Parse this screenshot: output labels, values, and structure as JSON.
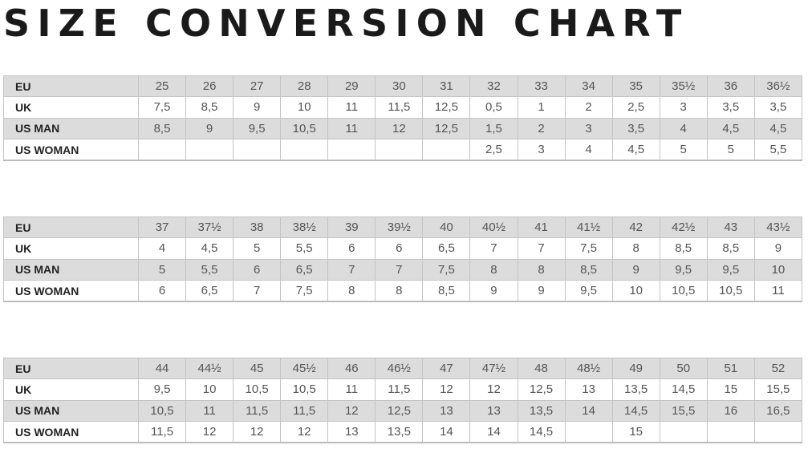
{
  "title": "SIZE CONVERSION CHART",
  "colors": {
    "header_row": "#dcdcdc",
    "border": "#c4c4c4"
  },
  "tables": [
    {
      "rows": [
        {
          "label": "EU",
          "values": [
            "25",
            "26",
            "27",
            "28",
            "29",
            "30",
            "31",
            "32",
            "33",
            "34",
            "35",
            "35½",
            "36",
            "36½"
          ]
        },
        {
          "label": "UK",
          "values": [
            "7,5",
            "8,5",
            "9",
            "10",
            "11",
            "11,5",
            "12,5",
            "0,5",
            "1",
            "2",
            "2,5",
            "3",
            "3,5",
            "3,5"
          ]
        },
        {
          "label": "US MAN",
          "values": [
            "8,5",
            "9",
            "9,5",
            "10,5",
            "11",
            "12",
            "12,5",
            "1,5",
            "2",
            "3",
            "3,5",
            "4",
            "4,5",
            "4,5"
          ]
        },
        {
          "label": "US WOMAN",
          "values": [
            "",
            "",
            "",
            "",
            "",
            "",
            "",
            "2,5",
            "3",
            "4",
            "4,5",
            "5",
            "5",
            "5,5"
          ]
        }
      ]
    },
    {
      "rows": [
        {
          "label": "EU",
          "values": [
            "37",
            "37½",
            "38",
            "38½",
            "39",
            "39½",
            "40",
            "40½",
            "41",
            "41½",
            "42",
            "42½",
            "43",
            "43½"
          ]
        },
        {
          "label": "UK",
          "values": [
            "4",
            "4,5",
            "5",
            "5,5",
            "6",
            "6",
            "6,5",
            "7",
            "7",
            "7,5",
            "8",
            "8,5",
            "8,5",
            "9"
          ]
        },
        {
          "label": "US MAN",
          "values": [
            "5",
            "5,5",
            "6",
            "6,5",
            "7",
            "7",
            "7,5",
            "8",
            "8",
            "8,5",
            "9",
            "9,5",
            "9,5",
            "10"
          ]
        },
        {
          "label": "US WOMAN",
          "values": [
            "6",
            "6,5",
            "7",
            "7,5",
            "8",
            "8",
            "8,5",
            "9",
            "9",
            "9,5",
            "10",
            "10,5",
            "10,5",
            "11"
          ]
        }
      ]
    },
    {
      "rows": [
        {
          "label": "EU",
          "values": [
            "44",
            "44½",
            "45",
            "45½",
            "46",
            "46½",
            "47",
            "47½",
            "48",
            "48½",
            "49",
            "50",
            "51",
            "52"
          ]
        },
        {
          "label": "UK",
          "values": [
            "9,5",
            "10",
            "10,5",
            "10,5",
            "11",
            "11,5",
            "12",
            "12",
            "12,5",
            "13",
            "13,5",
            "14,5",
            "15",
            "15,5"
          ]
        },
        {
          "label": "US MAN",
          "values": [
            "10,5",
            "11",
            "11,5",
            "11,5",
            "12",
            "12,5",
            "13",
            "13",
            "13,5",
            "14",
            "14,5",
            "15,5",
            "16",
            "16,5"
          ]
        },
        {
          "label": "US WOMAN",
          "values": [
            "11,5",
            "12",
            "12",
            "12",
            "13",
            "13,5",
            "14",
            "14",
            "14,5",
            "",
            "15",
            "",
            "",
            ""
          ]
        }
      ]
    }
  ]
}
